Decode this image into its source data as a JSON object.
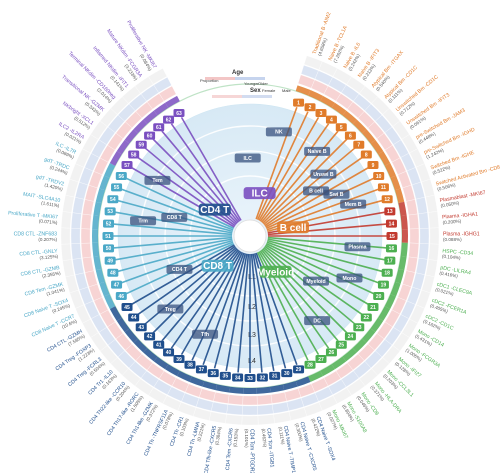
{
  "colors": {
    "cd4t": "#1f4e8c",
    "cd8t": "#4aa8c7",
    "ilc": "#7a4fc0",
    "bcell": "#e07b2a",
    "myeloid": "#4caf50",
    "plasma": "#c23a2f"
  },
  "levels": [
    "L1",
    "L2",
    "L3",
    "L4"
  ],
  "lineages": [
    {
      "name": "CD4 T",
      "color": "#1f4e8c"
    },
    {
      "name": "CD8 T",
      "color": "#4aa8c7"
    },
    {
      "name": "ILC",
      "color": "#7a4fc0"
    },
    {
      "name": "B cell",
      "color": "#e07b2a"
    },
    {
      "name": "Myeloid",
      "color": "#4caf50"
    }
  ],
  "branch_labels": [
    "CD8 T",
    "CD4 T",
    "ILC",
    "B cell",
    "Myeloid",
    "Tem",
    "Trm",
    "Treg",
    "Tfh",
    "Naive B",
    "Mem B",
    "DC",
    "Mono",
    "Plasma",
    "NK",
    "Unswi B",
    "Swi B"
  ],
  "legend": {
    "age": {
      "title": "Age",
      "items": [
        "Younger",
        "Older"
      ]
    },
    "sex": {
      "title": "Sex",
      "items": [
        "Female",
        "Male"
      ]
    },
    "bars": [
      "Proportion"
    ]
  },
  "clusters": [
    {
      "id": "1",
      "label": "Traditional B -AIM2",
      "pct": "(4.658%)",
      "color": "#e07b2a"
    },
    {
      "id": "2",
      "label": "Naive B -TCL1A",
      "pct": "(7.262%)",
      "color": "#e07b2a"
    },
    {
      "id": "3",
      "label": "Naive B -IL6",
      "pct": "(0.242%)",
      "color": "#e07b2a"
    },
    {
      "id": "4",
      "label": "Naive B -IFIT3",
      "pct": "(0.213%)",
      "color": "#e07b2a"
    },
    {
      "id": "5",
      "label": "Atypical Bm -ITGAX",
      "pct": "(0.540%)",
      "color": "#e07b2a"
    },
    {
      "id": "6",
      "label": "Atypical Bm -CD1C",
      "pct": "(0.111%)",
      "color": "#e07b2a"
    },
    {
      "id": "7",
      "label": "Unswitched Bm -CD1C",
      "pct": "(0.712%)",
      "color": "#e07b2a"
    },
    {
      "id": "8",
      "label": "Unswitched Bm -IFIT3",
      "pct": "(0.061%)",
      "color": "#e07b2a"
    },
    {
      "id": "9",
      "label": "pre-Switched Bm -JAM3",
      "pct": "(0.448%)",
      "color": "#e07b2a"
    },
    {
      "id": "10",
      "label": "pre-Switched Bm -IGHD",
      "pct": "(1.242%)",
      "color": "#e07b2a"
    },
    {
      "id": "11",
      "label": "Switched Bm -IGHE",
      "pct": "(0.522%)",
      "color": "#e07b2a"
    },
    {
      "id": "12",
      "label": "Switched Activated Bm -CD86",
      "pct": "(0.506%)",
      "color": "#e07b2a"
    },
    {
      "id": "13",
      "label": "Plasmablast -MKI67",
      "pct": "(0.050%)",
      "color": "#c23a2f"
    },
    {
      "id": "14",
      "label": "Plasma -IGHA1",
      "pct": "(0.200%)",
      "color": "#c23a2f"
    },
    {
      "id": "15",
      "label": "Plasma -IGHG1",
      "pct": "(0.088%)",
      "color": "#c23a2f"
    },
    {
      "id": "16",
      "label": "HSPC -CD34",
      "pct": "(0.104%)",
      "color": "#4caf50"
    },
    {
      "id": "17",
      "label": "pDC -LILRA4",
      "pct": "(0.416%)",
      "color": "#4caf50"
    },
    {
      "id": "18",
      "label": "cDC1 -CLEC9A",
      "pct": "(0.021%)",
      "color": "#4caf50"
    },
    {
      "id": "19",
      "label": "cDC2 -FCER1A",
      "pct": "(0.405%)",
      "color": "#4caf50"
    },
    {
      "id": "20",
      "label": "cDC2 -CD1C",
      "pct": "(0.162%)",
      "color": "#4caf50"
    },
    {
      "id": "21",
      "label": "Mono -CD14",
      "pct": "(5.431%)",
      "color": "#4caf50"
    },
    {
      "id": "22",
      "label": "Mono -FCGR3A",
      "pct": "(1.005%)",
      "color": "#4caf50"
    },
    {
      "id": "23",
      "label": "Mono -IFI27",
      "pct": "(0.128%)",
      "color": "#4caf50"
    },
    {
      "id": "24",
      "label": "Mono -CCL3L1",
      "pct": "(0.203%)",
      "color": "#4caf50"
    },
    {
      "id": "25",
      "label": "Mono -HLA-DRA",
      "pct": "(0.371%)",
      "color": "#4caf50"
    },
    {
      "id": "26",
      "label": "Mono -CD9",
      "pct": "(0.046%)",
      "color": "#4caf50"
    },
    {
      "id": "27",
      "label": "Mono -S100A8",
      "pct": "(0.804%)",
      "color": "#4caf50"
    },
    {
      "id": "28",
      "label": "Mono -MKI67",
      "pct": "(0.027%)",
      "color": "#4caf50"
    },
    {
      "id": "29",
      "label": "CD4 Naive T -SOX4",
      "pct": "(0.422%)",
      "color": "#1f4e8c"
    },
    {
      "id": "30",
      "label": "CD4 Naive T -CXCR5",
      "pct": "(0.300%)",
      "color": "#1f4e8c"
    },
    {
      "id": "31",
      "label": "CD4 Naive T -TIMP1",
      "pct": "(0.111%)",
      "color": "#1f4e8c"
    },
    {
      "id": "32",
      "label": "CD4 Tcm -ITGB1",
      "pct": "(0.462%)",
      "color": "#1f4e8c"
    },
    {
      "id": "33",
      "label": "CD4 Tcm -PTGDR2",
      "pct": "(0.101%)",
      "color": "#1f4e8c"
    },
    {
      "id": "34",
      "label": "CD4 Tem -CXCR6",
      "pct": "(0.153%)",
      "color": "#1f4e8c"
    },
    {
      "id": "35",
      "label": "CD4 Tfh-like -CXCR5",
      "pct": "(0.384%)",
      "color": "#1f4e8c"
    },
    {
      "id": "36",
      "label": "CD4 Th -LMNA",
      "pct": "(0.221%)",
      "color": "#1f4e8c"
    },
    {
      "id": "37",
      "label": "CD4 Th -CR1",
      "pct": "(0.103%)",
      "color": "#1f4e8c"
    },
    {
      "id": "38",
      "label": "CD4 Th -TNFRSF11A",
      "pct": "(0.078%)",
      "color": "#1f4e8c"
    },
    {
      "id": "39",
      "label": "CD4 Th1-like -GZMK",
      "pct": "(0.372%)",
      "color": "#1f4e8c"
    },
    {
      "id": "40",
      "label": "CD4 Th17-like -RORC",
      "pct": "(1.505%)",
      "color": "#1f4e8c"
    },
    {
      "id": "41",
      "label": "CD4 Th22-like -CCR10",
      "pct": "(0.204%)",
      "color": "#1f4e8c"
    },
    {
      "id": "42",
      "label": "CD4 Tr1 -IL10",
      "pct": "(0.163%)",
      "color": "#1f4e8c"
    },
    {
      "id": "43",
      "label": "CD4 Treg -FCRL3",
      "pct": "(0.504%)",
      "color": "#1f4e8c"
    },
    {
      "id": "44",
      "label": "CD4 Treg -FOXP3",
      "pct": "(1.223%)",
      "color": "#1f4e8c"
    },
    {
      "id": "45",
      "label": "CD4 CTL -GZMH",
      "pct": "(7.595%)",
      "color": "#1f4e8c"
    },
    {
      "id": "46",
      "label": "CD8 Naive T -CCR7",
      "pct": "(10.6%)",
      "color": "#4aa8c7"
    },
    {
      "id": "47",
      "label": "CD8 Naive T -SOX4",
      "pct": "(0.245%)",
      "color": "#4aa8c7"
    },
    {
      "id": "48",
      "label": "CD8 Tem -GZMK",
      "pct": "(1.041%)",
      "color": "#4aa8c7"
    },
    {
      "id": "49",
      "label": "CD8 CTL -GZMB",
      "pct": "(2.355%)",
      "color": "#4aa8c7"
    },
    {
      "id": "50",
      "label": "CD8 CTL -GNLY",
      "pct": "(3.125%)",
      "color": "#4aa8c7"
    },
    {
      "id": "51",
      "label": "CD8 CTL -ZNF683",
      "pct": "(0.207%)",
      "color": "#4aa8c7"
    },
    {
      "id": "52",
      "label": "Proliferative T -MKI67",
      "pct": "(0.071%)",
      "color": "#4aa8c7"
    },
    {
      "id": "53",
      "label": "MAIT -SLC4A10",
      "pct": "(1.611%)",
      "color": "#4aa8c7"
    },
    {
      "id": "54",
      "label": "gdT -TRDV2",
      "pct": "(1.420%)",
      "color": "#4aa8c7"
    },
    {
      "id": "55",
      "label": "gdT -TRDC",
      "pct": "(0.244%)",
      "color": "#4aa8c7"
    },
    {
      "id": "56",
      "label": "ILC -IL7R",
      "pct": "(0.089%)",
      "color": "#4aa8c7"
    },
    {
      "id": "57",
      "label": "ILC2 -IL2RA",
      "pct": "(0.021%)",
      "color": "#7a4fc0"
    },
    {
      "id": "58",
      "label": "NKbright -XCL1",
      "pct": "(0.512%)",
      "color": "#7a4fc0"
    },
    {
      "id": "59",
      "label": "Transitional NK -GZMK",
      "pct": "(0.343%)",
      "color": "#7a4fc0"
    },
    {
      "id": "60",
      "label": "Terminal NKdim -CD160neg",
      "pct": "(2.014%)",
      "color": "#7a4fc0"
    },
    {
      "id": "61",
      "label": "Inflamed NKdim -IFIT1",
      "pct": "(0.141%)",
      "color": "#7a4fc0"
    },
    {
      "id": "62",
      "label": "Mature NKdim -FCGR3A",
      "pct": "(3.233%)",
      "color": "#7a4fc0"
    },
    {
      "id": "63",
      "label": "Proliferative NK -MKI67",
      "pct": "(0.084%)",
      "color": "#7a4fc0"
    }
  ]
}
